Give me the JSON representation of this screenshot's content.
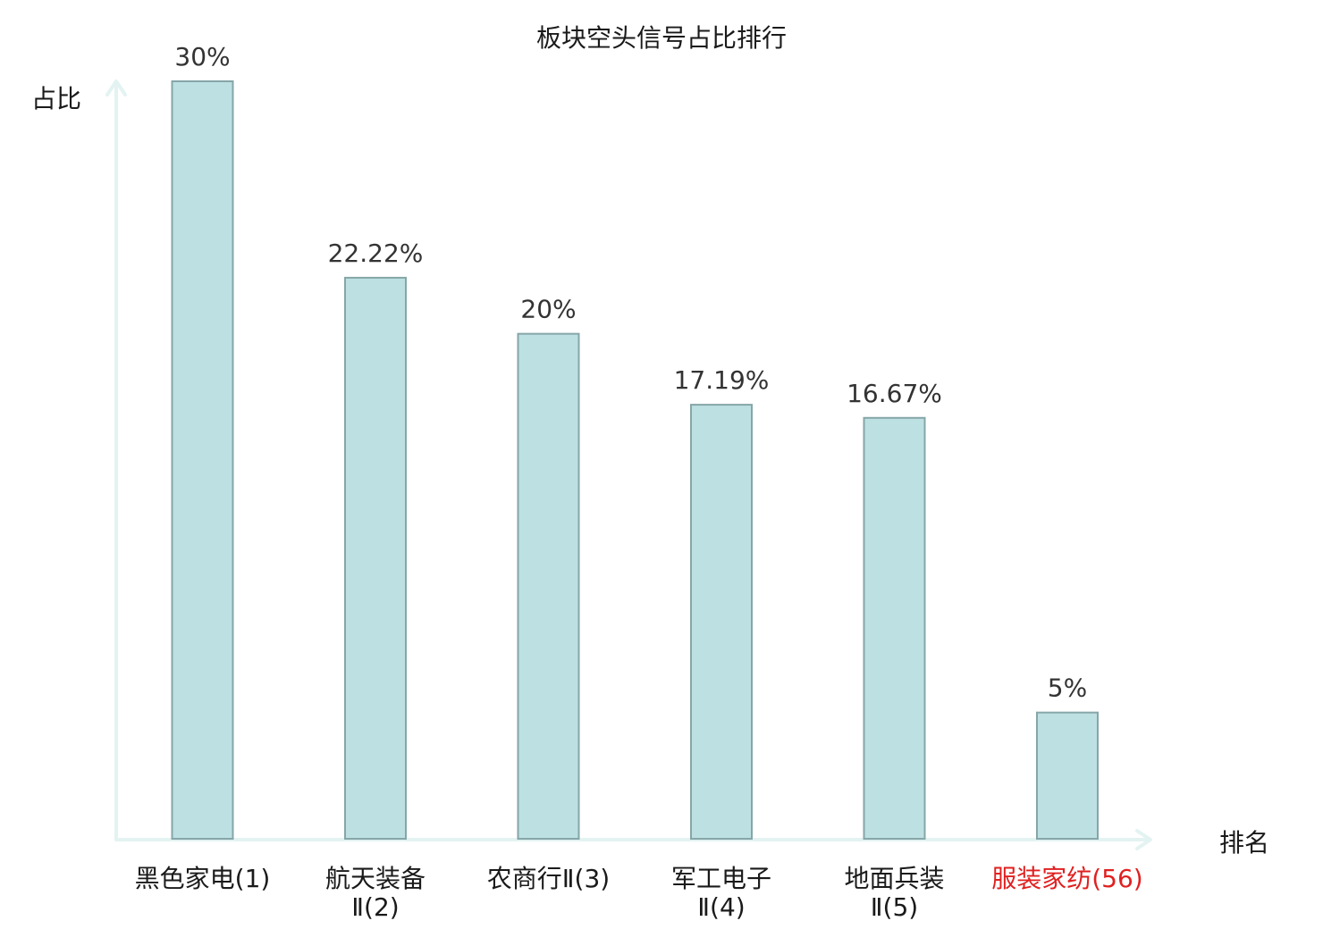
{
  "chart_data": {
    "type": "bar",
    "title": "板块空头信号占比排行",
    "xlabel": "排名",
    "ylabel": "占比",
    "ylim": [
      0,
      30
    ],
    "grid": false,
    "categories": [
      [
        "黑色家电(1)"
      ],
      [
        "航天装备",
        "Ⅱ(2)"
      ],
      [
        "农商行Ⅱ(3)"
      ],
      [
        "军工电子",
        "Ⅱ(4)"
      ],
      [
        "地面兵装",
        "Ⅱ(5)"
      ],
      [
        "服装家纺(56)"
      ]
    ],
    "values": [
      30,
      22.22,
      20,
      17.19,
      16.67,
      5
    ],
    "value_labels": [
      "30%",
      "22.22%",
      "20%",
      "17.19%",
      "16.67%",
      "5%"
    ],
    "highlight_index": 5,
    "colors": {
      "bar_fill": "#bde0e2",
      "bar_stroke": "#86a6a8",
      "axis": "#e3f3f1",
      "highlight_text": "#e02020",
      "text": "#1a1a1a"
    }
  }
}
